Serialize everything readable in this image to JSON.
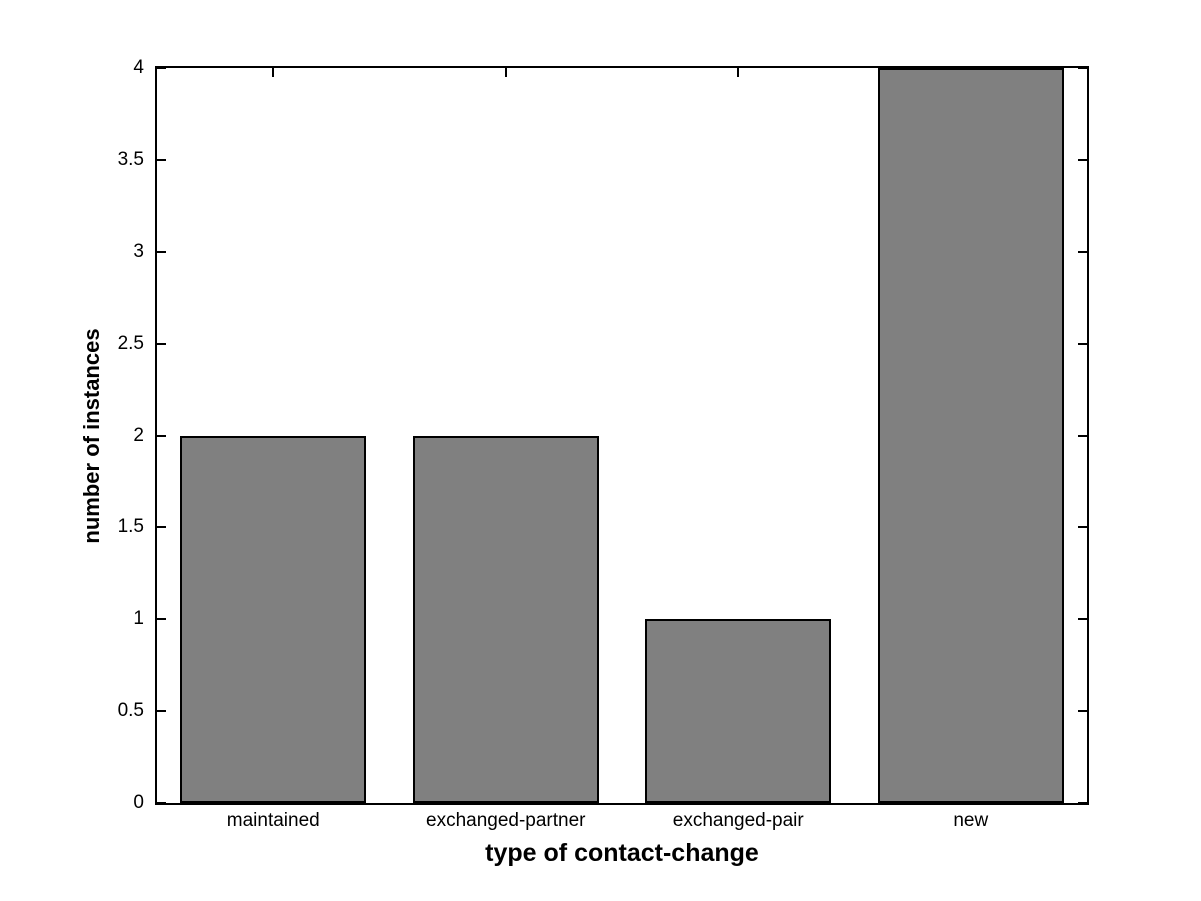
{
  "page": {
    "background": "#ffffff"
  },
  "chart_data": {
    "type": "bar",
    "title": "",
    "categories": [
      "maintained",
      "exchanged-partner",
      "exchanged-pair",
      "new"
    ],
    "values": [
      2,
      2,
      1,
      4
    ],
    "xlabel": "type of contact-change",
    "ylabel": "number of instances",
    "ylim": [
      0,
      4
    ],
    "ytick_values": [
      0,
      0.5,
      1,
      1.5,
      2,
      2.5,
      3,
      3.5,
      4
    ],
    "ytick_labels": [
      "0",
      "0.5",
      "1",
      "1.5",
      "2",
      "2.5",
      "3",
      "3.5",
      "4"
    ],
    "bar_width_fraction": 0.8,
    "bar_face_color": "#808080",
    "bar_edge_color": "#000000",
    "axis_color": "#000000",
    "plot_background": "#ffffff",
    "grid": false,
    "legend": "none"
  }
}
